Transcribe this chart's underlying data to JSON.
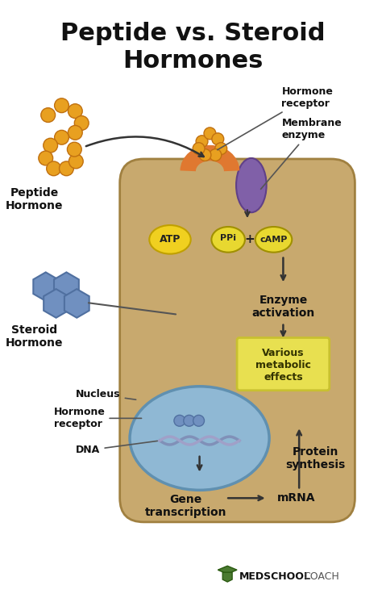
{
  "title_line1": "Peptide vs. Steroid",
  "title_line2": "Hormones",
  "bg_color": "#ffffff",
  "cell_color": "#C8A96E",
  "cell_light_color": "#D4B87A",
  "nucleus_color": "#8FB8D4",
  "nucleus_border": "#6090B0",
  "peptide_hormone_color": "#E8A020",
  "receptor_color": "#E07830",
  "membrane_enzyme_color": "#8060A8",
  "steroid_color": "#7090C0",
  "atp_color": "#F0D020",
  "camp_color": "#E8D830",
  "various_box_color": "#E8E050",
  "various_box_border": "#C8C030",
  "arrow_color": "#333333",
  "label_color": "#111111",
  "font_family": "Arial",
  "logo_text_bold": "MEDSCHOOL",
  "logo_text_light": "COACH",
  "footer_color": "#4A7A30"
}
